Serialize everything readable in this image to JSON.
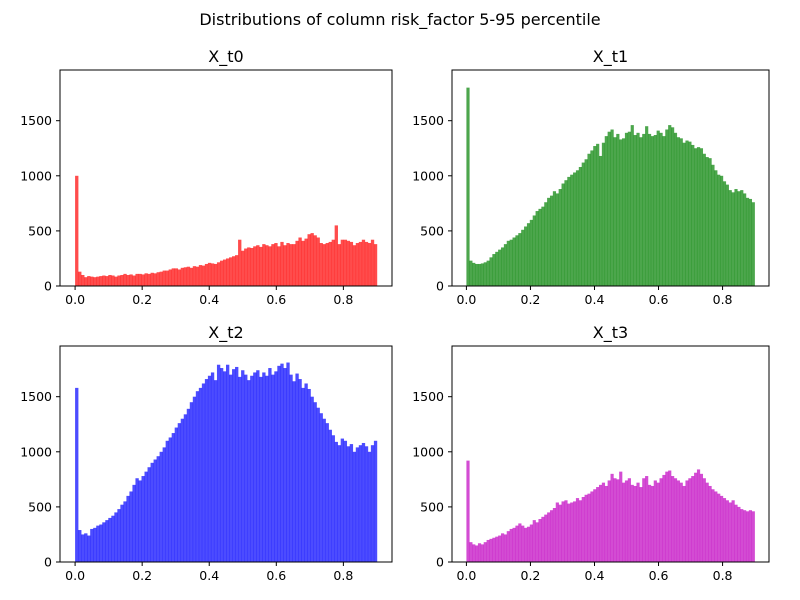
{
  "figure": {
    "title": "Distributions of column risk_factor 5-95 percentile"
  },
  "chart_data": [
    {
      "type": "bar",
      "title": "X_t0",
      "color": "#ff0000",
      "opacity": 0.7,
      "bin_width": 0.009,
      "xlim": [
        -0.045,
        0.945
      ],
      "ylim": [
        0,
        1960
      ],
      "xticks": [
        0,
        0.2,
        0.4,
        0.6,
        0.8
      ],
      "xtick_labels": [
        "0.0",
        "0.2",
        "0.4",
        "0.6",
        "0.8"
      ],
      "yticks": [
        0,
        500,
        1000,
        1500
      ],
      "ytick_labels": [
        "0",
        "500",
        "1000",
        "1500"
      ],
      "values": [
        1000,
        130,
        100,
        80,
        90,
        85,
        80,
        85,
        90,
        95,
        90,
        100,
        95,
        85,
        95,
        100,
        110,
        100,
        105,
        95,
        110,
        110,
        105,
        115,
        110,
        120,
        115,
        125,
        130,
        140,
        140,
        150,
        160,
        160,
        150,
        165,
        170,
        175,
        165,
        180,
        175,
        190,
        185,
        200,
        210,
        205,
        200,
        215,
        230,
        240,
        250,
        260,
        270,
        280,
        420,
        320,
        340,
        350,
        345,
        360,
        370,
        355,
        380,
        370,
        360,
        380,
        390,
        360,
        400,
        370,
        390,
        380,
        380,
        410,
        440,
        410,
        430,
        470,
        480,
        460,
        440,
        390,
        380,
        390,
        400,
        420,
        550,
        380,
        420,
        420,
        410,
        400,
        370,
        390,
        400,
        420,
        400,
        390,
        420,
        380
      ]
    },
    {
      "type": "bar",
      "title": "X_t1",
      "color": "#008000",
      "opacity": 0.7,
      "bin_width": 0.009,
      "xlim": [
        -0.045,
        0.945
      ],
      "ylim": [
        0,
        1960
      ],
      "xticks": [
        0,
        0.2,
        0.4,
        0.6,
        0.8
      ],
      "xtick_labels": [
        "0.0",
        "0.2",
        "0.4",
        "0.6",
        "0.8"
      ],
      "yticks": [
        0,
        500,
        1000,
        1500
      ],
      "ytick_labels": [
        "0",
        "500",
        "1000",
        "1500"
      ],
      "values": [
        1800,
        230,
        210,
        200,
        200,
        205,
        215,
        230,
        260,
        290,
        310,
        330,
        350,
        380,
        410,
        420,
        440,
        460,
        480,
        510,
        540,
        570,
        600,
        640,
        680,
        700,
        720,
        760,
        800,
        820,
        860,
        840,
        880,
        930,
        960,
        990,
        1010,
        1030,
        1050,
        1080,
        1120,
        1150,
        1200,
        1230,
        1270,
        1290,
        1180,
        1300,
        1360,
        1400,
        1420,
        1350,
        1380,
        1330,
        1340,
        1390,
        1400,
        1460,
        1370,
        1390,
        1350,
        1380,
        1450,
        1380,
        1360,
        1370,
        1410,
        1390,
        1360,
        1420,
        1460,
        1440,
        1390,
        1350,
        1340,
        1300,
        1320,
        1310,
        1280,
        1250,
        1260,
        1250,
        1200,
        1170,
        1160,
        1100,
        1050,
        1010,
        1000,
        950,
        920,
        870,
        850,
        880,
        860,
        870,
        840,
        800,
        790,
        760
      ]
    },
    {
      "type": "bar",
      "title": "X_t2",
      "color": "#0000ff",
      "opacity": 0.7,
      "bin_width": 0.009,
      "xlim": [
        -0.045,
        0.945
      ],
      "ylim": [
        0,
        1960
      ],
      "xticks": [
        0,
        0.2,
        0.4,
        0.6,
        0.8
      ],
      "xtick_labels": [
        "0.0",
        "0.2",
        "0.4",
        "0.6",
        "0.8"
      ],
      "yticks": [
        0,
        500,
        1000,
        1500
      ],
      "ytick_labels": [
        "0",
        "500",
        "1000",
        "1500"
      ],
      "values": [
        1580,
        290,
        250,
        260,
        240,
        300,
        310,
        330,
        340,
        360,
        380,
        400,
        420,
        450,
        480,
        520,
        550,
        600,
        640,
        700,
        760,
        740,
        780,
        820,
        860,
        900,
        930,
        960,
        1000,
        1040,
        1100,
        1130,
        1170,
        1220,
        1260,
        1300,
        1340,
        1390,
        1450,
        1500,
        1550,
        1580,
        1620,
        1660,
        1690,
        1720,
        1650,
        1790,
        1760,
        1730,
        1790,
        1700,
        1750,
        1770,
        1680,
        1740,
        1700,
        1650,
        1690,
        1720,
        1740,
        1680,
        1720,
        1690,
        1760,
        1700,
        1730,
        1780,
        1800,
        1760,
        1810,
        1700,
        1640,
        1710,
        1660,
        1580,
        1620,
        1570,
        1500,
        1450,
        1400,
        1350,
        1300,
        1260,
        1200,
        1150,
        1090,
        1060,
        1120,
        1100,
        1050,
        1070,
        1000,
        1040,
        1060,
        1080,
        1050,
        1000,
        1060,
        1100
      ]
    },
    {
      "type": "bar",
      "title": "X_t3",
      "color": "#c000c0",
      "opacity": 0.7,
      "bin_width": 0.009,
      "xlim": [
        -0.045,
        0.945
      ],
      "ylim": [
        0,
        1960
      ],
      "xticks": [
        0,
        0.2,
        0.4,
        0.6,
        0.8
      ],
      "xtick_labels": [
        "0.0",
        "0.2",
        "0.4",
        "0.6",
        "0.8"
      ],
      "yticks": [
        0,
        500,
        1000,
        1500
      ],
      "ytick_labels": [
        "0",
        "500",
        "1000",
        "1500"
      ],
      "values": [
        920,
        180,
        160,
        150,
        170,
        160,
        180,
        200,
        210,
        220,
        230,
        240,
        260,
        250,
        280,
        300,
        310,
        330,
        350,
        330,
        310,
        320,
        340,
        380,
        360,
        390,
        410,
        430,
        450,
        470,
        490,
        540,
        520,
        550,
        560,
        530,
        540,
        550,
        580,
        560,
        590,
        610,
        620,
        640,
        660,
        680,
        700,
        720,
        690,
        740,
        800,
        760,
        750,
        820,
        720,
        740,
        760,
        700,
        690,
        720,
        680,
        760,
        780,
        700,
        690,
        740,
        720,
        760,
        790,
        820,
        830,
        780,
        760,
        740,
        720,
        690,
        740,
        760,
        780,
        810,
        840,
        800,
        760,
        720,
        690,
        660,
        640,
        620,
        600,
        580,
        560,
        540,
        560,
        520,
        500,
        480,
        470,
        460,
        470,
        460
      ]
    }
  ]
}
